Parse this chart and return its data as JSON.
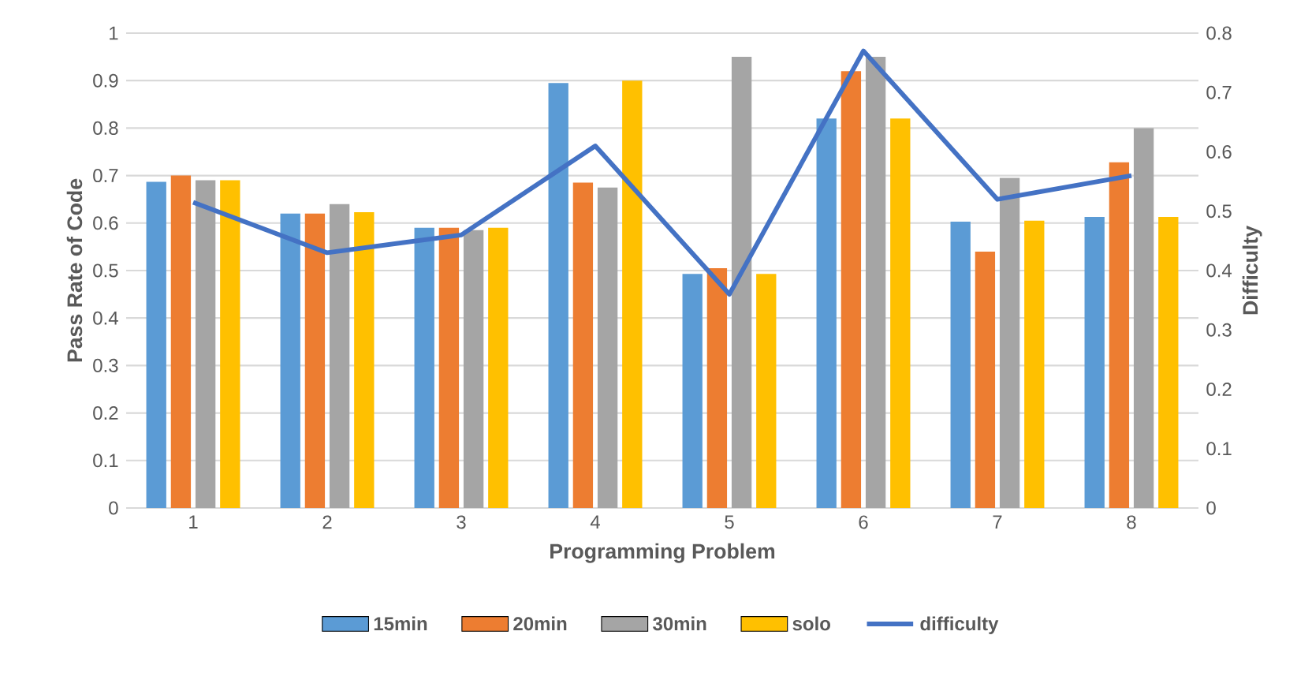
{
  "chart_data": {
    "type": "bar",
    "xlabel": "Programming Problem",
    "ylabel": "Pass Rate of Code",
    "y2label": "Difficulty",
    "categories": [
      "1",
      "2",
      "3",
      "4",
      "5",
      "6",
      "7",
      "8"
    ],
    "series": [
      {
        "name": "15min",
        "color": "#5b9bd5",
        "values": [
          0.687,
          0.62,
          0.59,
          0.895,
          0.493,
          0.82,
          0.603,
          0.613
        ]
      },
      {
        "name": "20min",
        "color": "#ed7d31",
        "values": [
          0.7,
          0.62,
          0.59,
          0.685,
          0.505,
          0.92,
          0.54,
          0.728
        ]
      },
      {
        "name": "30min",
        "color": "#a5a5a5",
        "values": [
          0.69,
          0.64,
          0.585,
          0.675,
          0.95,
          0.95,
          0.695,
          0.8
        ]
      },
      {
        "name": "solo",
        "color": "#ffc000",
        "values": [
          0.69,
          0.623,
          0.59,
          0.9,
          0.493,
          0.82,
          0.605,
          0.613
        ]
      },
      {
        "name": "difficulty",
        "type": "line",
        "axis": "y2",
        "color": "#4472c4",
        "values": [
          0.515,
          0.43,
          0.46,
          0.61,
          0.36,
          0.77,
          0.52,
          0.56
        ]
      }
    ],
    "ylim": [
      0,
      1
    ],
    "yticks": [
      0,
      0.1,
      0.2,
      0.3,
      0.4,
      0.5,
      0.6,
      0.7,
      0.8,
      0.9,
      1
    ],
    "y2lim": [
      0,
      0.8
    ],
    "y2ticks": [
      0,
      0.1,
      0.2,
      0.3,
      0.4,
      0.5,
      0.6,
      0.7,
      0.8
    ],
    "grid": "y",
    "legend": "bottom"
  }
}
